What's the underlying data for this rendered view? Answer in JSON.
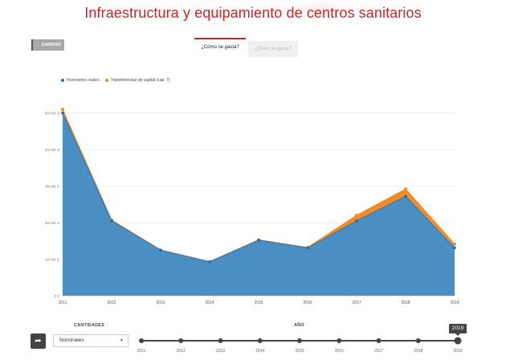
{
  "page": {
    "title": "Infraestructura y equipamiento de centros sanitarios",
    "back_label": "← SANIDAD",
    "tabs": [
      {
        "label": "¿Cómo se gasta?",
        "active": true
      },
      {
        "label": "¿Quién lo gasta?",
        "active": false
      }
    ]
  },
  "chart_data": {
    "type": "area",
    "x": [
      2011,
      2012,
      2013,
      2014,
      2015,
      2016,
      2017,
      2018,
      2019
    ],
    "series": [
      {
        "name": "Inversiones reales",
        "color": "#4a8fc4",
        "values": [
          50,
          20.5,
          12.5,
          9.3,
          15.2,
          13.1,
          20.5,
          27.2,
          13.1
        ]
      },
      {
        "name": "Transferencias de capital (cap. 7)",
        "color": "#f08c2a",
        "values": [
          1.0,
          0.2,
          0.0,
          0.0,
          0.1,
          0.1,
          1.5,
          2.0,
          1.0
        ]
      }
    ],
    "stacked": true,
    "yticks": [
      "0 €",
      "10 mill. €",
      "20 mill. €",
      "30 mill. €",
      "40 mill. €",
      "50 mill. €"
    ],
    "ytick_values": [
      0,
      10,
      20,
      30,
      40,
      50
    ],
    "ylim": [
      0,
      55
    ],
    "grid": true,
    "legend_position": "top-left"
  },
  "controls": {
    "cantidades_label": "CANTIDADES",
    "select_value": "Nominales",
    "ano_label": "AÑO",
    "years": [
      "2011",
      "2012",
      "2013",
      "2014",
      "2015",
      "2016",
      "2017",
      "2018",
      "2019"
    ],
    "selected_year": "2019",
    "share_icon": "share-icon"
  }
}
